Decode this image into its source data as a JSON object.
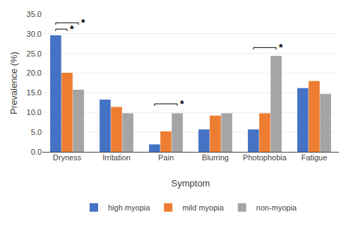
{
  "chart_data": {
    "type": "bar",
    "categories": [
      "Dryness",
      "Irritation",
      "Pain",
      "Blurring",
      "Photophobia",
      "Fatigue"
    ],
    "series": [
      {
        "name": "high myopia",
        "color": "#4472C4",
        "values": [
          29.6,
          13.3,
          1.9,
          5.7,
          5.7,
          16.2
        ]
      },
      {
        "name": "mild myopia",
        "color": "#ED7D31",
        "values": [
          20.1,
          11.4,
          5.2,
          9.2,
          9.8,
          18.0
        ]
      },
      {
        "name": "non-myopia",
        "color": "#A5A5A5",
        "values": [
          15.8,
          9.8,
          9.8,
          9.8,
          24.4,
          14.7
        ]
      }
    ],
    "xlabel": "Symptom",
    "ylabel": "Prevalence (%)",
    "ylim": [
      0,
      35.0
    ],
    "yticks": [
      {
        "value": 0.0,
        "label": "0.0"
      },
      {
        "value": 5.0,
        "label": "5.0"
      },
      {
        "value": 10.0,
        "label": "10.0"
      },
      {
        "value": 15.0,
        "label": "15.0"
      },
      {
        "value": 20.0,
        "label": "20.0"
      },
      {
        "value": 25.0,
        "label": "25.0"
      },
      {
        "value": 30.0,
        "label": "30.0"
      },
      {
        "value": 35.0,
        "label": "35.0"
      }
    ],
    "grid": true,
    "legend": "bottom",
    "annotations": [
      {
        "category": "Dryness",
        "from": "high myopia",
        "to": "mild myopia",
        "y": 31.2,
        "label": "*"
      },
      {
        "category": "Dryness",
        "from": "high myopia",
        "to": "non-myopia",
        "y": 32.8,
        "label": "*"
      },
      {
        "category": "Pain",
        "from": "high myopia",
        "to": "non-myopia",
        "y": 12.2,
        "label": "*"
      },
      {
        "category": "Photophobia",
        "from": "high myopia",
        "to": "non-myopia",
        "y": 26.5,
        "label": "*"
      }
    ]
  }
}
